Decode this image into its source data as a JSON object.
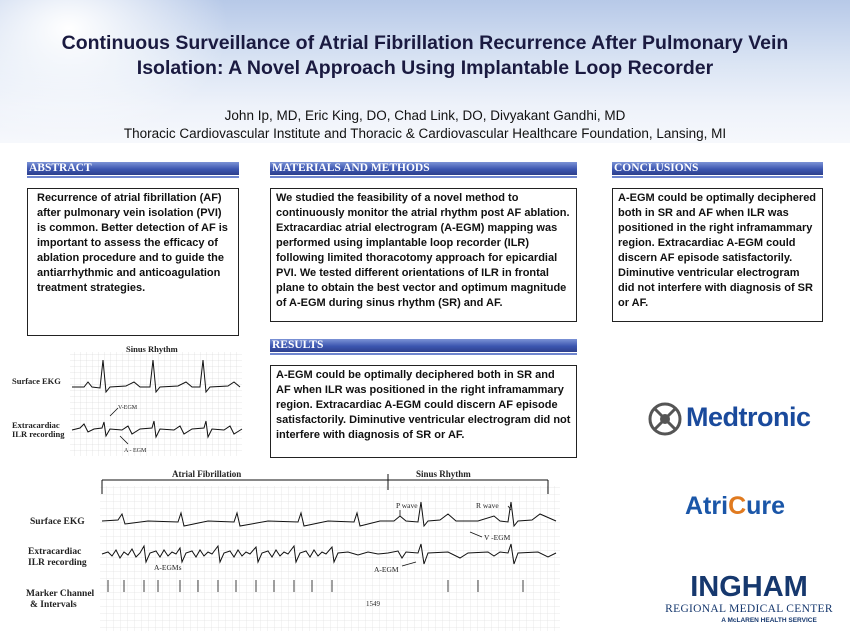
{
  "poster": {
    "title_line1": "Continuous Surveillance of Atrial Fibrillation Recurrence After Pulmonary Vein",
    "title_line2": "Isolation: A Novel Approach Using Implantable Loop Recorder",
    "authors": "John Ip, MD, Eric King, DO, Chad Link, DO, Divyakant Gandhi, MD",
    "affiliation": "Thoracic Cardiovascular Institute and Thoracic & Cardiovascular Healthcare Foundation, Lansing, MI"
  },
  "sections": {
    "abstract": {
      "heading": "ABSTRACT",
      "body": "Recurrence of atrial fibrillation (AF) after pulmonary vein isolation (PVI) is common. Better detection of AF is important to assess the efficacy of ablation procedure and to guide the antiarrhythmic and anticoagulation treatment strategies."
    },
    "methods": {
      "heading": "MATERIALS AND METHODS",
      "body": "We studied the feasibility of a novel method to continuously monitor the atrial rhythm post AF ablation. Extracardiac atrial electrogram (A-EGM) mapping was performed using implantable loop recorder (ILR) following limited thoracotomy approach for epicardial PVI. We tested different orientations of ILR in frontal plane to obtain the best vector and optimum magnitude of A-EGM during sinus rhythm (SR) and AF."
    },
    "results": {
      "heading": "RESULTS",
      "body": "A-EGM could be optimally deciphered both in SR and AF when ILR was positioned in the right inframammary region. Extracardiac A-EGM could discern AF episode satisfactorily. Diminutive ventricular electrogram did not interfere with diagnosis of SR or AF."
    },
    "conclusions": {
      "heading": "CONCLUSIONS",
      "body": "A-EGM could be optimally deciphered both in SR and AF when ILR was positioned in the right inframammary region. Extracardiac A-EGM could discern AF episode satisfactorily. Diminutive ventricular electrogram did not interfere with diagnosis of SR or AF."
    }
  },
  "figure1": {
    "title": "Sinus Rhythm",
    "label_surface": "Surface EKG",
    "label_ilr_line1": "Extracardiac",
    "label_ilr_line2": "ILR recording",
    "annot_vegm": "V-EGM",
    "annot_aegm": "A - EGM"
  },
  "figure2": {
    "label_af": "Atrial Fibrillation",
    "label_sr": "Sinus Rhythm",
    "label_surface": "Surface EKG",
    "label_ilr_line1": "Extracardiac",
    "label_ilr_line2": "ILR recording",
    "label_marker_line1": "Marker Channel",
    "label_marker_line2": "& Intervals",
    "annot_pwave1": "P wave",
    "annot_rwave": "R wave",
    "annot_vegm": "V -EGM",
    "annot_aegm_left": "A-EGMs",
    "annot_aegm_right": "A-EGM",
    "interval_value": "1549"
  },
  "logos": {
    "medtronic": "Medtronic",
    "atricure_a": "Atri",
    "atricure_c": "C",
    "atricure_b": "ure",
    "ingham": "INGHAM",
    "ingham_sub": "REGIONAL MEDICAL CENTER",
    "ingham_tag": "A McLAREN HEALTH SERVICE",
    "medtronic_color": "#1a4a9c",
    "atricure_color": "#1a56a8",
    "atricure_accent": "#e07a1f"
  }
}
